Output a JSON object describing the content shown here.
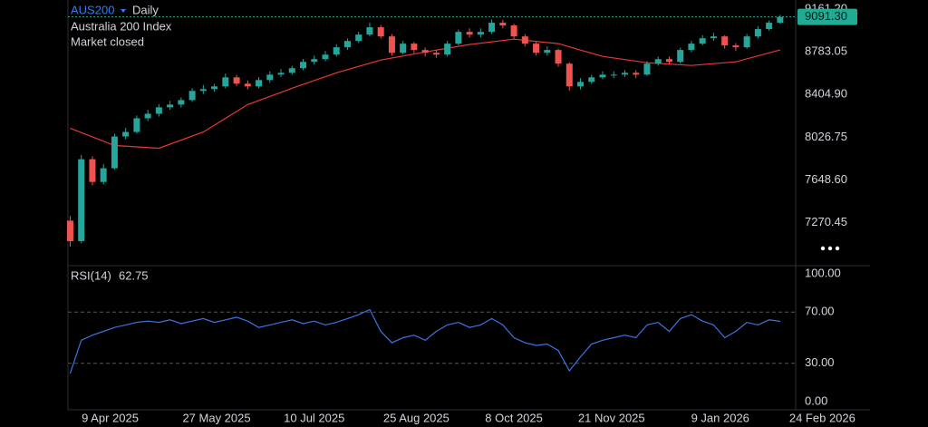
{
  "chart_data": {
    "type": "candlestick",
    "symbol": "AUS200",
    "interval": "Daily",
    "title": "Australia 200 Index",
    "status": "Market closed",
    "up_color": "#26a69a",
    "down_color": "#ef5350",
    "grid": false,
    "x": [
      "2025-03-22",
      "2025-03-27",
      "2025-04-01",
      "2025-04-06",
      "2025-04-11",
      "2025-04-16",
      "2025-04-21",
      "2025-04-26",
      "2025-05-01",
      "2025-05-06",
      "2025-05-11",
      "2025-05-16",
      "2025-05-21",
      "2025-05-26",
      "2025-05-31",
      "2025-06-05",
      "2025-06-10",
      "2025-06-15",
      "2025-06-20",
      "2025-06-25",
      "2025-06-30",
      "2025-07-05",
      "2025-07-10",
      "2025-07-15",
      "2025-07-20",
      "2025-07-25",
      "2025-07-30",
      "2025-08-04",
      "2025-08-09",
      "2025-08-14",
      "2025-08-19",
      "2025-08-24",
      "2025-08-29",
      "2025-09-03",
      "2025-09-08",
      "2025-09-13",
      "2025-09-18",
      "2025-09-23",
      "2025-09-28",
      "2025-10-03",
      "2025-10-08",
      "2025-10-13",
      "2025-10-18",
      "2025-10-23",
      "2025-10-28",
      "2025-11-02",
      "2025-11-07",
      "2025-11-12",
      "2025-11-17",
      "2025-11-22",
      "2025-11-27",
      "2025-12-02",
      "2025-12-07",
      "2025-12-12",
      "2025-12-17",
      "2025-12-22",
      "2025-12-27",
      "2026-01-01",
      "2026-01-06",
      "2026-01-11",
      "2026-01-16",
      "2026-01-21",
      "2026-01-26",
      "2026-01-31",
      "2026-02-05"
    ],
    "open": [
      7290,
      7109,
      7833,
      7632,
      7753,
      8034,
      8074,
      8195,
      8235,
      8292,
      8316,
      8356,
      8437,
      8453,
      8477,
      8557,
      8501,
      8477,
      8533,
      8581,
      8597,
      8638,
      8694,
      8718,
      8758,
      8823,
      8879,
      8935,
      9000,
      8919,
      8774,
      8855,
      8799,
      8774,
      8758,
      8855,
      8959,
      8935,
      8959,
      9040,
      9016,
      8919,
      8855,
      8774,
      8799,
      8678,
      8477,
      8517,
      8557,
      8581,
      8581,
      8597,
      8581,
      8678,
      8718,
      8694,
      8799,
      8855,
      8903,
      8919,
      8839,
      8823,
      8919,
      8984,
      9040
    ],
    "high": [
      7330,
      7870,
      7860,
      7790,
      8060,
      8110,
      8220,
      8270,
      8320,
      8350,
      8380,
      8460,
      8490,
      8500,
      8590,
      8580,
      8530,
      8560,
      8610,
      8630,
      8660,
      8720,
      8750,
      8790,
      8850,
      8900,
      8960,
      9040,
      9020,
      8940,
      8880,
      8870,
      8820,
      8800,
      8880,
      8980,
      8990,
      8990,
      9070,
      9065,
      9030,
      8940,
      8870,
      8830,
      8810,
      8690,
      8550,
      8580,
      8610,
      8610,
      8620,
      8620,
      8700,
      8740,
      8740,
      8820,
      8880,
      8930,
      8950,
      8930,
      8860,
      8940,
      9010,
      9060,
      9110
    ],
    "low": [
      7060,
      7090,
      7600,
      7610,
      7740,
      8010,
      8060,
      8170,
      8210,
      8270,
      8290,
      8340,
      8410,
      8430,
      8460,
      8480,
      8450,
      8460,
      8510,
      8560,
      8580,
      8620,
      8670,
      8700,
      8740,
      8800,
      8860,
      8920,
      8900,
      8750,
      8760,
      8770,
      8740,
      8730,
      8740,
      8840,
      8910,
      8910,
      8940,
      8990,
      8900,
      8830,
      8750,
      8750,
      8650,
      8440,
      8450,
      8500,
      8540,
      8550,
      8560,
      8550,
      8570,
      8660,
      8670,
      8680,
      8780,
      8840,
      8880,
      8810,
      8790,
      8810,
      8900,
      8970,
      9030
    ],
    "close": [
      7109,
      7833,
      7632,
      7753,
      8034,
      8074,
      8195,
      8235,
      8292,
      8316,
      8356,
      8437,
      8453,
      8477,
      8557,
      8501,
      8477,
      8533,
      8581,
      8597,
      8638,
      8694,
      8718,
      8758,
      8823,
      8879,
      8935,
      9000,
      8919,
      8774,
      8855,
      8799,
      8774,
      8758,
      8855,
      8959,
      8935,
      8959,
      9040,
      9016,
      8919,
      8855,
      8774,
      8799,
      8678,
      8477,
      8517,
      8557,
      8581,
      8581,
      8597,
      8581,
      8678,
      8718,
      8694,
      8799,
      8855,
      8903,
      8919,
      8839,
      8823,
      8919,
      8984,
      9040,
      9091.3
    ],
    "last_price": {
      "value": 9091.3,
      "label": "9091.30"
    },
    "last_color": "#22ab94",
    "ylim": [
      6892,
      9241
    ],
    "yticks": [
      {
        "value": 9161.2,
        "label": "9161.20"
      },
      {
        "value": 8783.05,
        "label": "8783.05"
      },
      {
        "value": 8404.9,
        "label": "8404.90"
      },
      {
        "value": 8026.75,
        "label": "8026.75"
      },
      {
        "value": 7648.6,
        "label": "7648.60"
      },
      {
        "value": 7270.45,
        "label": "7270.45"
      }
    ],
    "xlim": [
      "2025-03-21",
      "2026-02-12"
    ],
    "xticks": [
      {
        "value": "2025-04-09",
        "label": "9 Apr 2025"
      },
      {
        "value": "2025-05-27",
        "label": "27 May 2025"
      },
      {
        "value": "2025-07-10",
        "label": "10 Jul 2025"
      },
      {
        "value": "2025-08-25",
        "label": "25 Aug 2025"
      },
      {
        "value": "2025-10-08",
        "label": "8 Oct 2025"
      },
      {
        "value": "2025-11-21",
        "label": "21 Nov 2025"
      },
      {
        "value": "2026-01-09",
        "label": "9 Jan 2026"
      },
      {
        "value": "2026-02-24",
        "label": "24 Feb 2026"
      }
    ],
    "ma": {
      "color": "#e53935",
      "x": [
        "2025-03-22",
        "2025-04-11",
        "2025-05-01",
        "2025-05-21",
        "2025-06-10",
        "2025-06-30",
        "2025-07-20",
        "2025-08-09",
        "2025-08-29",
        "2025-09-18",
        "2025-10-08",
        "2025-10-28",
        "2025-11-17",
        "2025-12-07",
        "2025-12-27",
        "2026-01-16",
        "2026-02-05"
      ],
      "values": [
        8107,
        7954,
        7930,
        8074,
        8316,
        8461,
        8597,
        8710,
        8782,
        8847,
        8895,
        8855,
        8742,
        8686,
        8662,
        8694,
        8799
      ]
    },
    "rsi": {
      "name": "RSI(14)",
      "value": 62.75,
      "color": "#3d74e0",
      "values": [
        22,
        48,
        52,
        55,
        58,
        60,
        62,
        63,
        62,
        64,
        61,
        63,
        65,
        62,
        64,
        66,
        63,
        58,
        60,
        62,
        64,
        61,
        63,
        60,
        62,
        65,
        68,
        72,
        55,
        46,
        50,
        52,
        48,
        55,
        60,
        62,
        58,
        60,
        65,
        60,
        50,
        46,
        44,
        45,
        40,
        24,
        35,
        45,
        48,
        50,
        52,
        50,
        60,
        62,
        55,
        65,
        68,
        63,
        60,
        50,
        55,
        62,
        60,
        64,
        62.75
      ],
      "ylim": [
        -6.4,
        106.4
      ],
      "yticks": [
        {
          "value": 100,
          "label": "100.00"
        },
        {
          "value": 70,
          "label": "70.00"
        },
        {
          "value": 30,
          "label": "30.00"
        },
        {
          "value": 0,
          "label": "0.00"
        }
      ]
    }
  }
}
